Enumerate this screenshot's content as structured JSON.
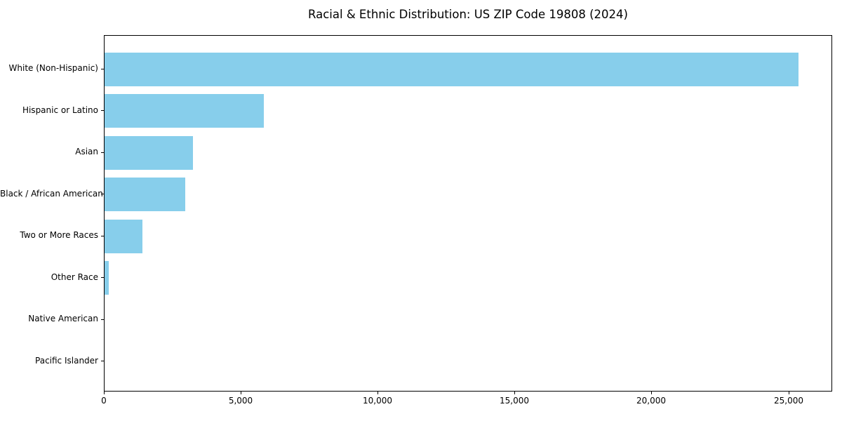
{
  "chart_data": {
    "type": "bar",
    "orientation": "horizontal",
    "title": "Racial & Ethnic Distribution: US ZIP Code 19808 (2024)",
    "categories": [
      "White (Non-Hispanic)",
      "Hispanic or Latino",
      "Asian",
      "Black / African American",
      "Two or More Races",
      "Other Race",
      "Native American",
      "Pacific Islander"
    ],
    "values": [
      25350,
      5820,
      3230,
      2950,
      1380,
      150,
      10,
      5
    ],
    "xlabel": "",
    "ylabel": "",
    "xlim": [
      0,
      26600
    ],
    "xticks": [
      0,
      5000,
      10000,
      15000,
      20000,
      25000
    ],
    "xtick_labels": [
      "0",
      "5,000",
      "10,000",
      "15,000",
      "20,000",
      "25,000"
    ],
    "bar_color": "#87CEEB",
    "axis_color": "#000000",
    "text_color": "#000000",
    "background": "#ffffff",
    "grid": false,
    "legend": "none"
  }
}
